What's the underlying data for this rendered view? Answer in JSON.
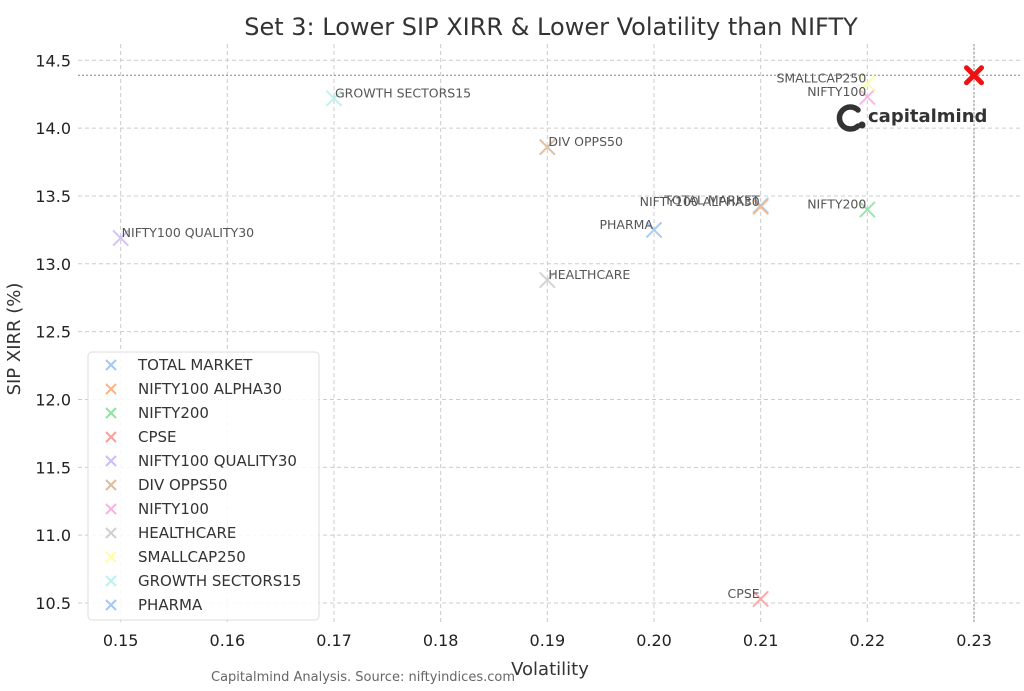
{
  "chart_data": {
    "type": "scatter",
    "title": "Set 3: Lower SIP XIRR & Lower Volatility than NIFTY",
    "xlabel": "Volatility",
    "ylabel": "SIP XIRR (%)",
    "xlim": [
      0.146,
      0.2345
    ],
    "ylim": [
      10.36,
      14.62
    ],
    "xticks": [
      0.15,
      0.16,
      0.17,
      0.18,
      0.19,
      0.2,
      0.21,
      0.22,
      0.23
    ],
    "xtick_labels": [
      "0.15",
      "0.16",
      "0.17",
      "0.18",
      "0.19",
      "0.20",
      "0.21",
      "0.22",
      "0.23"
    ],
    "yticks": [
      10.5,
      11.0,
      11.5,
      12.0,
      12.5,
      13.0,
      13.5,
      14.0,
      14.5
    ],
    "ytick_labels": [
      "10.5",
      "11.0",
      "11.5",
      "12.0",
      "12.5",
      "13.0",
      "13.5",
      "14.0",
      "14.5"
    ],
    "grid": true,
    "legend_position": "lower-left",
    "series": [
      {
        "name": "TOTAL MARKET",
        "label": "TOTAL MARKET",
        "x": 0.21,
        "y": 13.43,
        "color": "#a1c9f4"
      },
      {
        "name": "NIFTY100 ALPHA30",
        "label": "NIFTY100 ALPHA30",
        "x": 0.21,
        "y": 13.42,
        "color": "#ffb482"
      },
      {
        "name": "NIFTY200",
        "label": "NIFTY200",
        "x": 0.22,
        "y": 13.4,
        "color": "#8de5a1"
      },
      {
        "name": "CPSE",
        "label": "CPSE",
        "x": 0.21,
        "y": 10.53,
        "color": "#ff9f9b"
      },
      {
        "name": "NIFTY100 QUALITY30",
        "label": "NIFTY100 QUALITY30",
        "x": 0.15,
        "y": 13.19,
        "color": "#d0bbff"
      },
      {
        "name": "DIV OPPS50",
        "label": "DIV OPPS50",
        "x": 0.19,
        "y": 13.86,
        "color": "#debb9b"
      },
      {
        "name": "NIFTY100",
        "label": "NIFTY100",
        "x": 0.22,
        "y": 14.23,
        "color": "#fab0e4"
      },
      {
        "name": "HEALTHCARE",
        "label": "HEALTHCARE",
        "x": 0.19,
        "y": 12.88,
        "color": "#cfcfcf"
      },
      {
        "name": "SMALLCAP250",
        "label": "SMALLCAP250",
        "x": 0.22,
        "y": 14.33,
        "color": "#fffea3"
      },
      {
        "name": "GROWTH SECTORS15",
        "label": "GROWTH SECTORS15",
        "x": 0.17,
        "y": 14.22,
        "color": "#b9f2f0"
      },
      {
        "name": "PHARMA",
        "label": "PHARMA",
        "x": 0.2,
        "y": 13.25,
        "color": "#a1c9f4"
      }
    ],
    "reference_point": {
      "x": 0.23,
      "y": 14.39,
      "color": "#ee1111"
    }
  },
  "branding": {
    "logo_text": "capitalmind",
    "logo_icon": "capitalmind-c-icon"
  },
  "footer": {
    "source": "Capitalmind Analysis. Source: niftyindices.com"
  }
}
